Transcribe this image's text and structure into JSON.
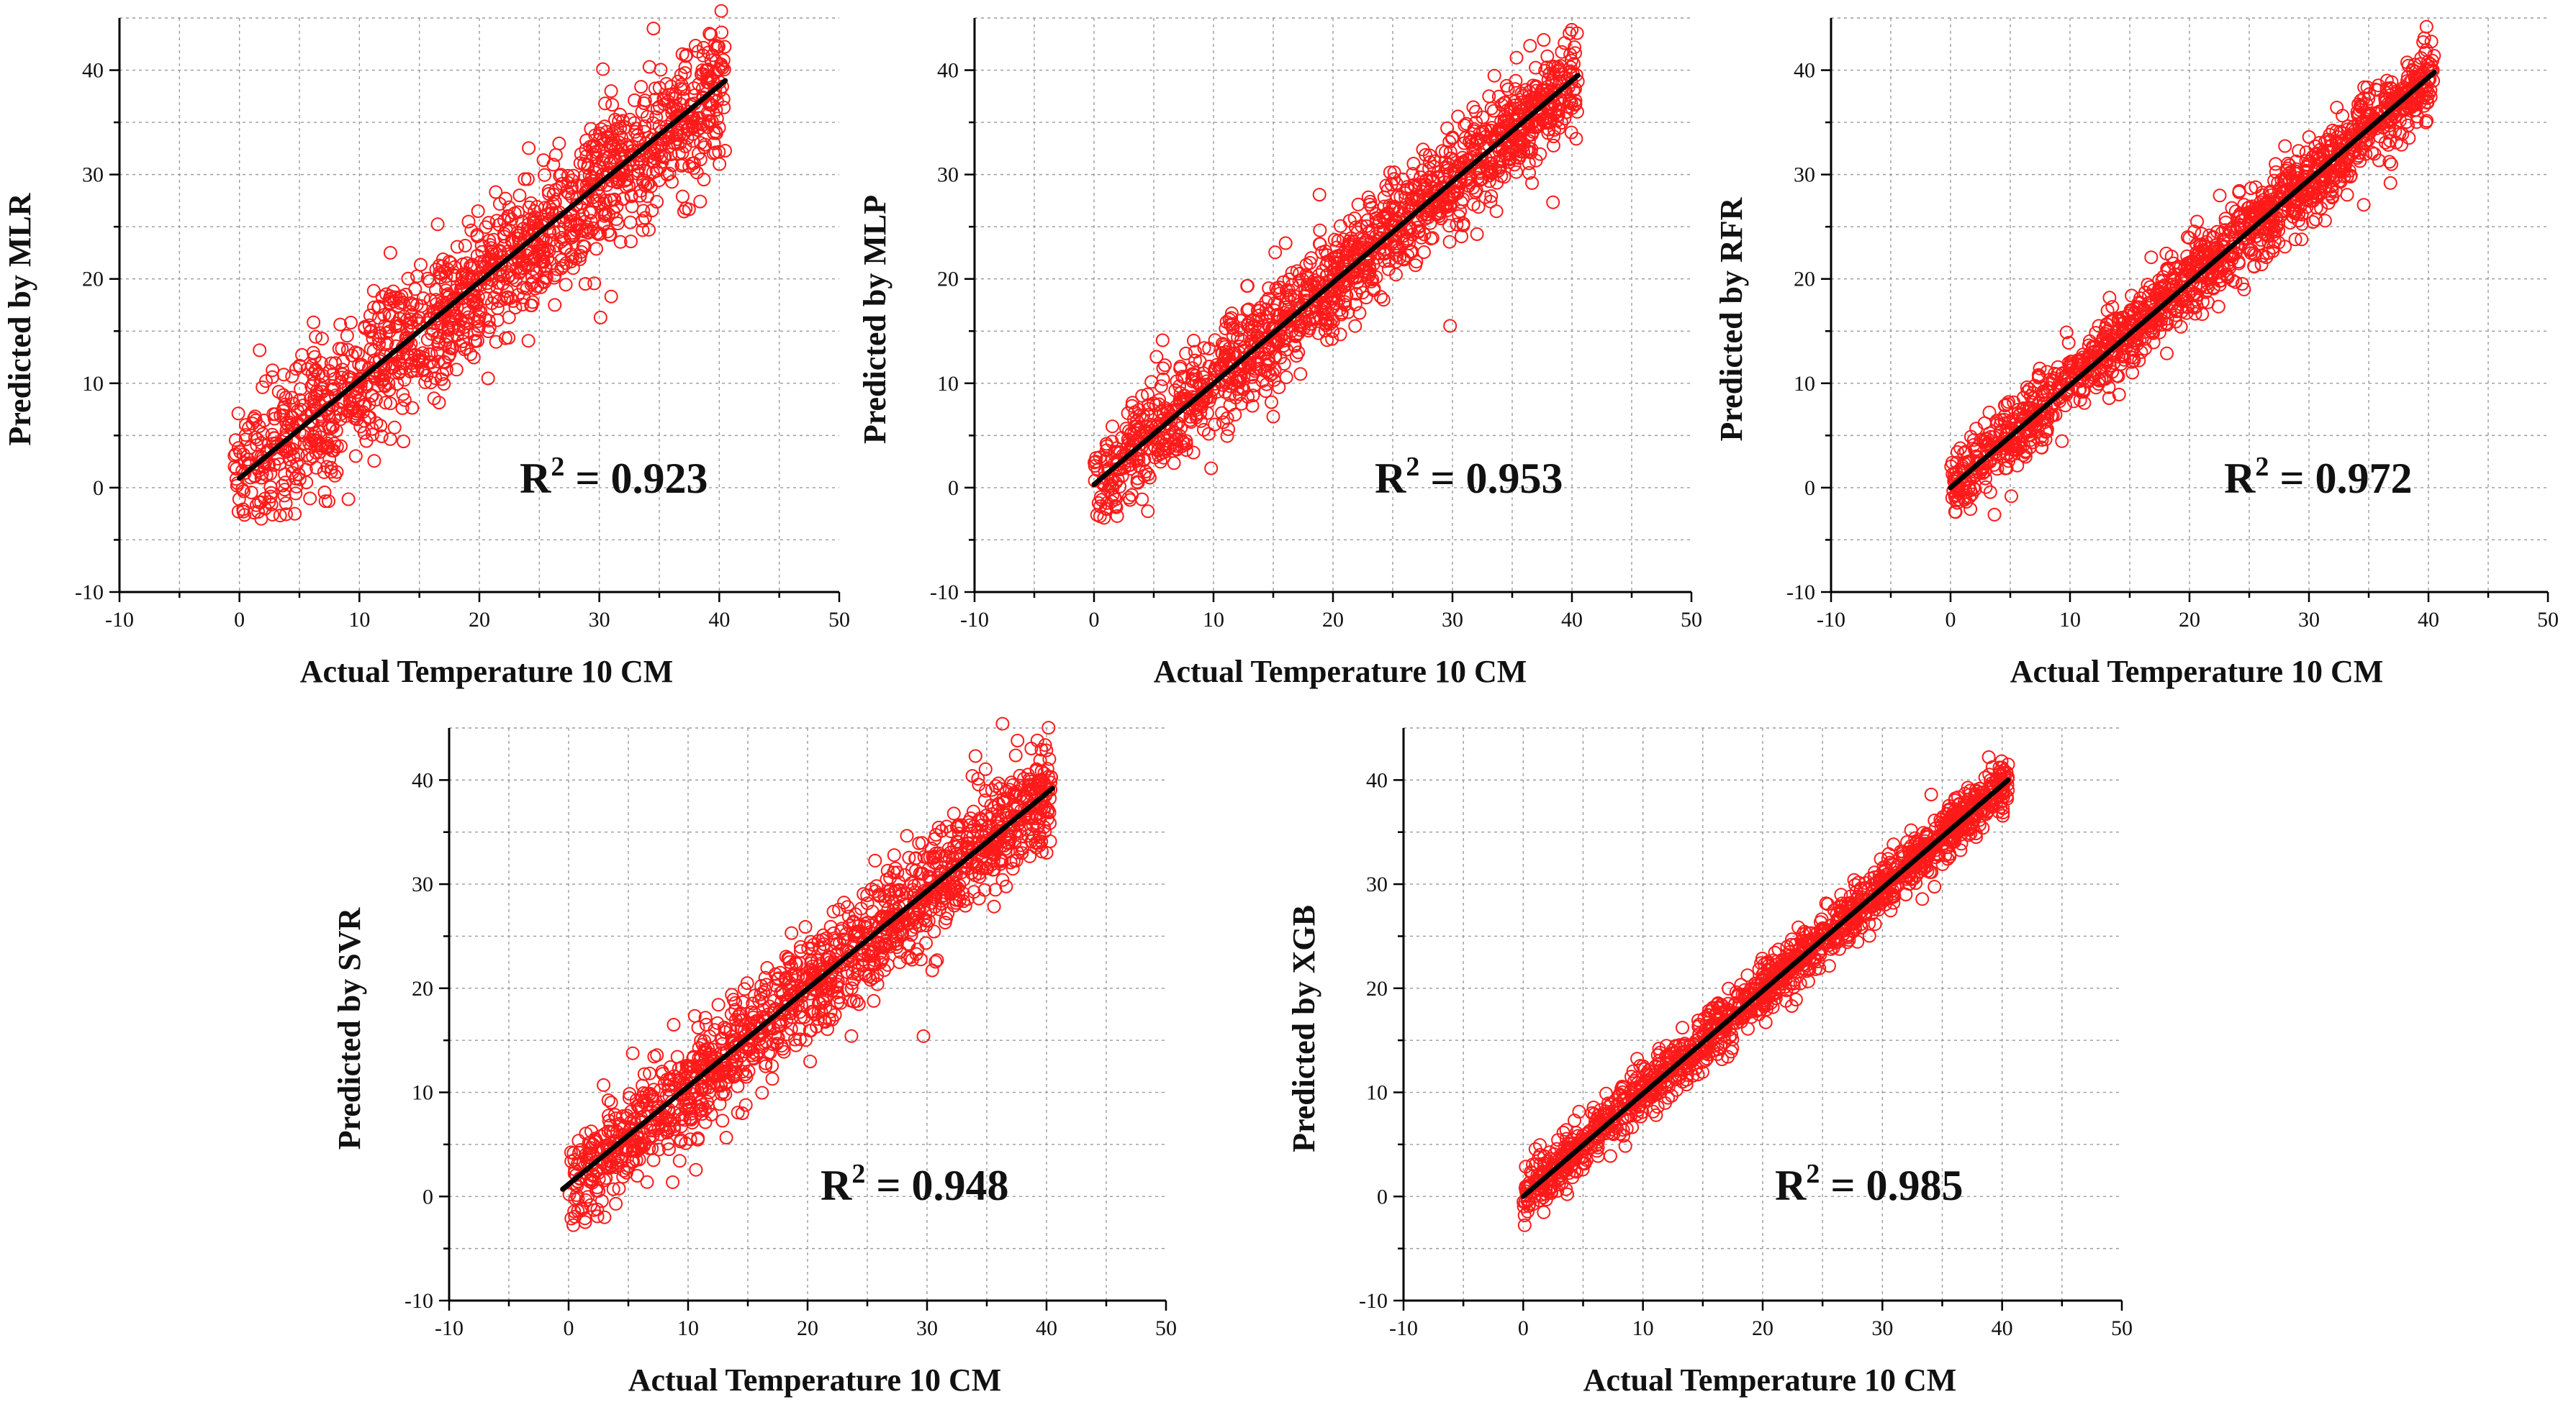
{
  "colors": {
    "points": "#ff1a1a",
    "fit_line": "#000000",
    "grid": "#9a9a9a",
    "axis": "#000000"
  },
  "chart_data": [
    {
      "type": "scatter",
      "id": "mlr",
      "xlabel": "Actual Temperature 10 CM",
      "ylabel": "Predicted by MLR",
      "xlim": [
        -10,
        50
      ],
      "ylim": [
        -10,
        45
      ],
      "xticks": [
        -10,
        0,
        10,
        20,
        30,
        40,
        50
      ],
      "yticks": [
        -10,
        0,
        10,
        20,
        30,
        40
      ],
      "r2_label": "R",
      "r2_exponent": "2",
      "r2_value": " = 0.923",
      "fit_line": {
        "x": [
          0,
          40.5
        ],
        "y": [
          0.9,
          39
        ]
      },
      "sample": {
        "slope": 0.92,
        "intercept": 1.0,
        "spread": 3.6,
        "xmin": -0.5,
        "xmax": 40.5,
        "count": 1400,
        "seed": 11
      },
      "outliers": [
        [
          30.3,
          40.1
        ],
        [
          30.1,
          16.3
        ]
      ]
    },
    {
      "type": "scatter",
      "id": "mlp",
      "xlabel": "Actual Temperature 10 CM",
      "ylabel": "Predicted by MLP",
      "xlim": [
        -10,
        50
      ],
      "ylim": [
        -10,
        45
      ],
      "xticks": [
        -10,
        0,
        10,
        20,
        30,
        40,
        50
      ],
      "yticks": [
        -10,
        0,
        10,
        20,
        30,
        40
      ],
      "r2_label": "R",
      "r2_exponent": "2",
      "r2_value": " = 0.953",
      "fit_line": {
        "x": [
          0,
          40.5
        ],
        "y": [
          0.3,
          39.5
        ]
      },
      "sample": {
        "slope": 0.96,
        "intercept": 0.4,
        "spread": 2.6,
        "xmin": 0,
        "xmax": 40.5,
        "count": 1400,
        "seed": 23
      },
      "outliers": [
        [
          29.8,
          15.5
        ]
      ]
    },
    {
      "type": "scatter",
      "id": "rfr",
      "xlabel": "Actual Temperature 10 CM",
      "ylabel": "Predicted by RFR",
      "xlim": [
        -10,
        50
      ],
      "ylim": [
        -10,
        45
      ],
      "xticks": [
        -10,
        0,
        10,
        20,
        30,
        40,
        50
      ],
      "yticks": [
        -10,
        0,
        10,
        20,
        30,
        40
      ],
      "r2_label": "R",
      "r2_exponent": "2",
      "r2_value": " = 0.972",
      "fit_line": {
        "x": [
          0,
          40.5
        ],
        "y": [
          0,
          39.8
        ]
      },
      "sample": {
        "slope": 0.98,
        "intercept": 0.1,
        "spread": 2.0,
        "xmin": 0,
        "xmax": 40.5,
        "count": 1400,
        "seed": 37
      },
      "outliers": []
    },
    {
      "type": "scatter",
      "id": "svr",
      "xlabel": "Actual Temperature 10 CM",
      "ylabel": "Predicted by SVR",
      "xlim": [
        -10,
        50
      ],
      "ylim": [
        -10,
        45
      ],
      "xticks": [
        -10,
        0,
        10,
        20,
        30,
        40,
        50
      ],
      "yticks": [
        -10,
        0,
        10,
        20,
        30,
        40
      ],
      "r2_label": "R",
      "r2_exponent": "2",
      "r2_value": " = 0.948",
      "fit_line": {
        "x": [
          -0.5,
          40.5
        ],
        "y": [
          0.7,
          39.2
        ]
      },
      "sample": {
        "slope": 0.95,
        "intercept": 0.8,
        "spread": 2.8,
        "xmin": 0,
        "xmax": 40.5,
        "count": 1400,
        "seed": 41
      },
      "outliers": [
        [
          29.7,
          15.4
        ]
      ]
    },
    {
      "type": "scatter",
      "id": "xgb",
      "xlabel": "Actual Temperature 10 CM",
      "ylabel": "Predicted by XGB",
      "xlim": [
        -10,
        50
      ],
      "ylim": [
        -10,
        45
      ],
      "xticks": [
        -10,
        0,
        10,
        20,
        30,
        40,
        50
      ],
      "yticks": [
        -10,
        0,
        10,
        20,
        30,
        40
      ],
      "r2_label": "R",
      "r2_exponent": "2",
      "r2_value": " = 0.985",
      "fit_line": {
        "x": [
          0,
          40.5
        ],
        "y": [
          0,
          40
        ]
      },
      "sample": {
        "slope": 0.99,
        "intercept": 0.0,
        "spread": 1.4,
        "xmin": 0,
        "xmax": 40.5,
        "count": 1400,
        "seed": 53
      },
      "outliers": [
        [
          40.5,
          41.5
        ]
      ]
    }
  ]
}
